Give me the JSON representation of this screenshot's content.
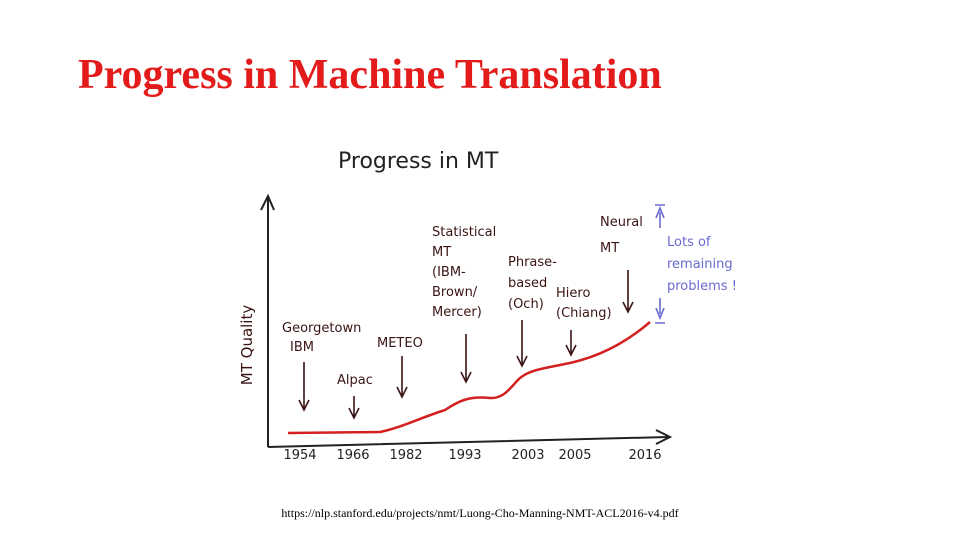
{
  "slide": {
    "title": "Progress in Machine Translation",
    "figure": {
      "title": "Progress in MT",
      "y_label": "MT Quality",
      "x_labels": [
        "1954",
        "1966",
        "1982",
        "1993",
        "2003",
        "2005",
        "2016"
      ],
      "annotations": [
        {
          "lines": [
            "Georgetown",
            "IBM"
          ]
        },
        {
          "lines": [
            "Alpac"
          ]
        },
        {
          "lines": [
            "METEO"
          ]
        },
        {
          "lines": [
            "Statistical",
            "MT",
            "(IBM-",
            "Brown/",
            "Mercer)"
          ]
        },
        {
          "lines": [
            "Phrase-",
            "based",
            "(Och)"
          ]
        },
        {
          "lines": [
            "Hiero",
            "(Chiang)"
          ]
        },
        {
          "lines": [
            "Neural",
            "MT"
          ]
        },
        {
          "lines": [
            "Lots of",
            "remaining",
            "problems !"
          ]
        }
      ]
    },
    "source": "https://nlp.stanford.edu/projects/nmt/Luong-Cho-Manning-NMT-ACL2016-v4.pdf"
  }
}
